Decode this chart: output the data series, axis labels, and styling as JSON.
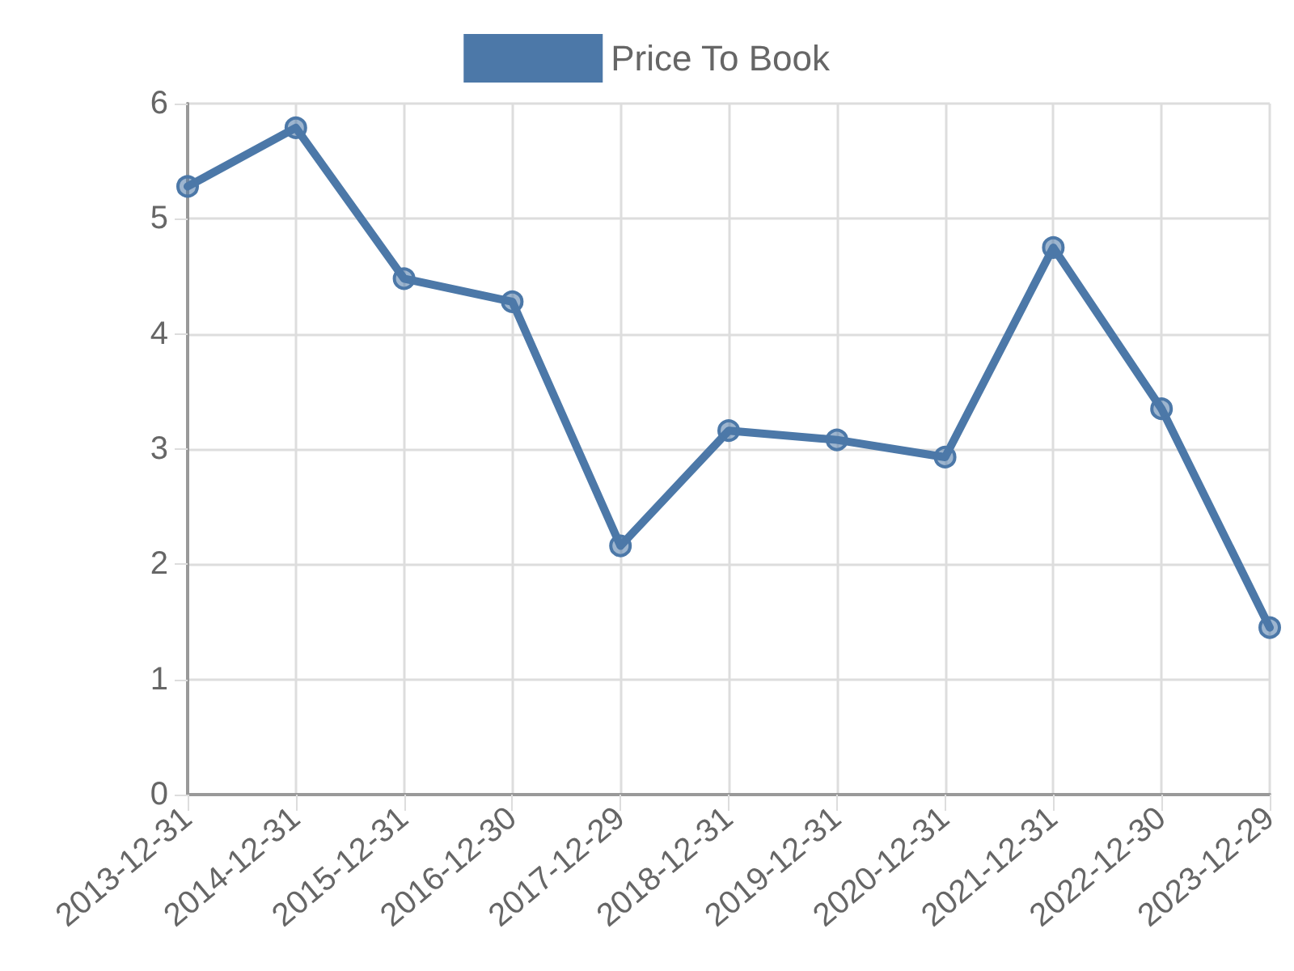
{
  "chart_data": {
    "type": "line",
    "categories": [
      "2013-12-31",
      "2014-12-31",
      "2015-12-31",
      "2016-12-30",
      "2017-12-29",
      "2018-12-31",
      "2019-12-31",
      "2020-12-31",
      "2021-12-31",
      "2022-12-30",
      "2023-12-29"
    ],
    "series": [
      {
        "name": "Price To Book",
        "color": "#4c78a8",
        "values": [
          5.28,
          5.79,
          4.48,
          4.28,
          2.16,
          3.16,
          3.08,
          2.93,
          4.75,
          3.35,
          1.45
        ]
      }
    ],
    "ylim": [
      0,
      6
    ],
    "yticks": [
      0,
      1,
      2,
      3,
      4,
      5,
      6
    ],
    "grid": true,
    "legend": "top",
    "marker": "circle",
    "line_style": "solid"
  }
}
